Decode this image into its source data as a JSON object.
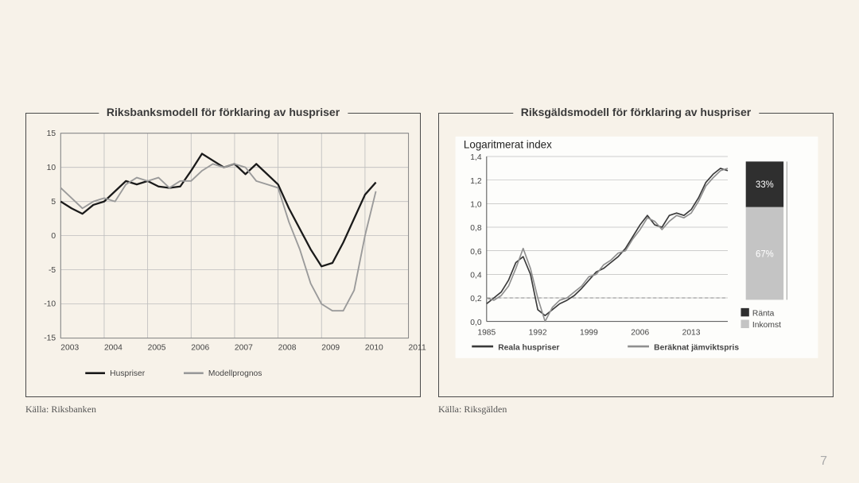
{
  "page_number": "7",
  "background_color": "#f7f2e9",
  "left_panel": {
    "title": "Riksbanksmodell för förklaring av huspriser",
    "source": "Källa: Riksbanken",
    "chart": {
      "type": "line",
      "ylim": [
        -15,
        15
      ],
      "ytick_step": 5,
      "yticks": [
        -15,
        -10,
        -5,
        0,
        5,
        10,
        15
      ],
      "xlim": [
        2003,
        2011
      ],
      "xticks": [
        2003,
        2004,
        2005,
        2006,
        2007,
        2008,
        2009,
        2010,
        2011
      ],
      "grid_color": "#bdbdbd",
      "border_color": "#888888",
      "series": [
        {
          "name": "Huspriser",
          "color": "#1a1a1a",
          "width": 2.2,
          "x": [
            2003.0,
            2003.25,
            2003.5,
            2003.75,
            2004.0,
            2004.25,
            2004.5,
            2004.75,
            2005.0,
            2005.25,
            2005.5,
            2005.75,
            2006.0,
            2006.25,
            2006.5,
            2006.75,
            2007.0,
            2007.25,
            2007.5,
            2007.75,
            2008.0,
            2008.25,
            2008.5,
            2008.75,
            2009.0,
            2009.25,
            2009.5,
            2009.75,
            2010.0,
            2010.25
          ],
          "y": [
            5.0,
            4.0,
            3.2,
            4.5,
            5.0,
            6.5,
            8.0,
            7.5,
            8.0,
            7.2,
            7.0,
            7.2,
            9.5,
            12.0,
            11.0,
            10.0,
            10.5,
            9.0,
            10.5,
            9.0,
            7.5,
            4.0,
            1.0,
            -2.0,
            -4.5,
            -4.0,
            -1.0,
            2.5,
            6.0,
            7.8
          ]
        },
        {
          "name": "Modellprognos",
          "color": "#9a9a9a",
          "width": 1.8,
          "x": [
            2003.0,
            2003.25,
            2003.5,
            2003.75,
            2004.0,
            2004.25,
            2004.5,
            2004.75,
            2005.0,
            2005.25,
            2005.5,
            2005.75,
            2006.0,
            2006.25,
            2006.5,
            2006.75,
            2007.0,
            2007.25,
            2007.5,
            2007.75,
            2008.0,
            2008.25,
            2008.5,
            2008.75,
            2009.0,
            2009.25,
            2009.5,
            2009.75,
            2010.0,
            2010.25
          ],
          "y": [
            7.0,
            5.5,
            4.0,
            5.0,
            5.5,
            5.0,
            7.5,
            8.5,
            8.0,
            8.5,
            7.0,
            8.0,
            8.0,
            9.5,
            10.5,
            10.0,
            10.5,
            10.0,
            8.0,
            7.5,
            7.0,
            2.0,
            -2.0,
            -7.0,
            -10.0,
            -11.0,
            -11.0,
            -8.0,
            0.0,
            6.5
          ]
        }
      ],
      "legend": {
        "items": [
          "Huspriser",
          "Modellprognos"
        ],
        "colors": [
          "#1a1a1a",
          "#9a9a9a"
        ]
      }
    }
  },
  "right_panel": {
    "title": "Riksgäldsmodell för förklaring av huspriser",
    "source": "Källa: Riksgälden",
    "chart": {
      "type": "line-with-bar",
      "inner_title": "Logaritmerat index",
      "ylim": [
        0.0,
        1.4
      ],
      "ytick_step": 0.2,
      "yticks": [
        "0,0",
        "0,2",
        "0,4",
        "0,6",
        "0,8",
        "1,0",
        "1,2",
        "1,4"
      ],
      "yticks_num": [
        0.0,
        0.2,
        0.4,
        0.6,
        0.8,
        1.0,
        1.2,
        1.4
      ],
      "xlim": [
        1985,
        2018
      ],
      "xticks": [
        1985,
        1992,
        1999,
        2006,
        2013
      ],
      "grid_color": "#bdbdbd",
      "dashed_ref": 0.2,
      "series": [
        {
          "name": "Reala huspriser",
          "color": "#3a3a3a",
          "width": 1.6,
          "x": [
            1985,
            1986,
            1987,
            1988,
            1989,
            1990,
            1991,
            1992,
            1993,
            1994,
            1995,
            1996,
            1997,
            1998,
            1999,
            2000,
            2001,
            2002,
            2003,
            2004,
            2005,
            2006,
            2007,
            2008,
            2009,
            2010,
            2011,
            2012,
            2013,
            2014,
            2015,
            2016,
            2017,
            2018
          ],
          "y": [
            0.15,
            0.2,
            0.25,
            0.35,
            0.5,
            0.55,
            0.4,
            0.1,
            0.05,
            0.1,
            0.15,
            0.18,
            0.22,
            0.28,
            0.35,
            0.42,
            0.45,
            0.5,
            0.55,
            0.62,
            0.72,
            0.82,
            0.9,
            0.82,
            0.8,
            0.9,
            0.92,
            0.9,
            0.95,
            1.05,
            1.18,
            1.25,
            1.3,
            1.28
          ]
        },
        {
          "name": "Beräknat jämviktspris",
          "color": "#8f8f8f",
          "width": 1.6,
          "x": [
            1985,
            1986,
            1987,
            1988,
            1989,
            1990,
            1991,
            1992,
            1993,
            1994,
            1995,
            1996,
            1997,
            1998,
            1999,
            2000,
            2001,
            2002,
            2003,
            2004,
            2005,
            2006,
            2007,
            2008,
            2009,
            2010,
            2011,
            2012,
            2013,
            2014,
            2015,
            2016,
            2017,
            2018
          ],
          "y": [
            0.2,
            0.18,
            0.22,
            0.3,
            0.45,
            0.62,
            0.45,
            0.2,
            0.0,
            0.12,
            0.18,
            0.2,
            0.25,
            0.3,
            0.38,
            0.4,
            0.48,
            0.52,
            0.58,
            0.6,
            0.7,
            0.78,
            0.88,
            0.85,
            0.78,
            0.85,
            0.9,
            0.88,
            0.92,
            1.02,
            1.15,
            1.22,
            1.28,
            1.3
          ]
        }
      ],
      "legend": {
        "items": [
          "Reala huspriser",
          "Beräknat jämviktspris"
        ],
        "colors": [
          "#3a3a3a",
          "#8f8f8f"
        ]
      },
      "bar": {
        "segments": [
          {
            "label": "33%",
            "value": 33,
            "color": "#2f2f2f",
            "legend": "Ränta"
          },
          {
            "label": "67%",
            "value": 67,
            "color": "#c4c4c4",
            "legend": "Inkomst"
          }
        ],
        "legend_box_colors": [
          "#2f2f2f",
          "#c4c4c4"
        ]
      }
    }
  }
}
